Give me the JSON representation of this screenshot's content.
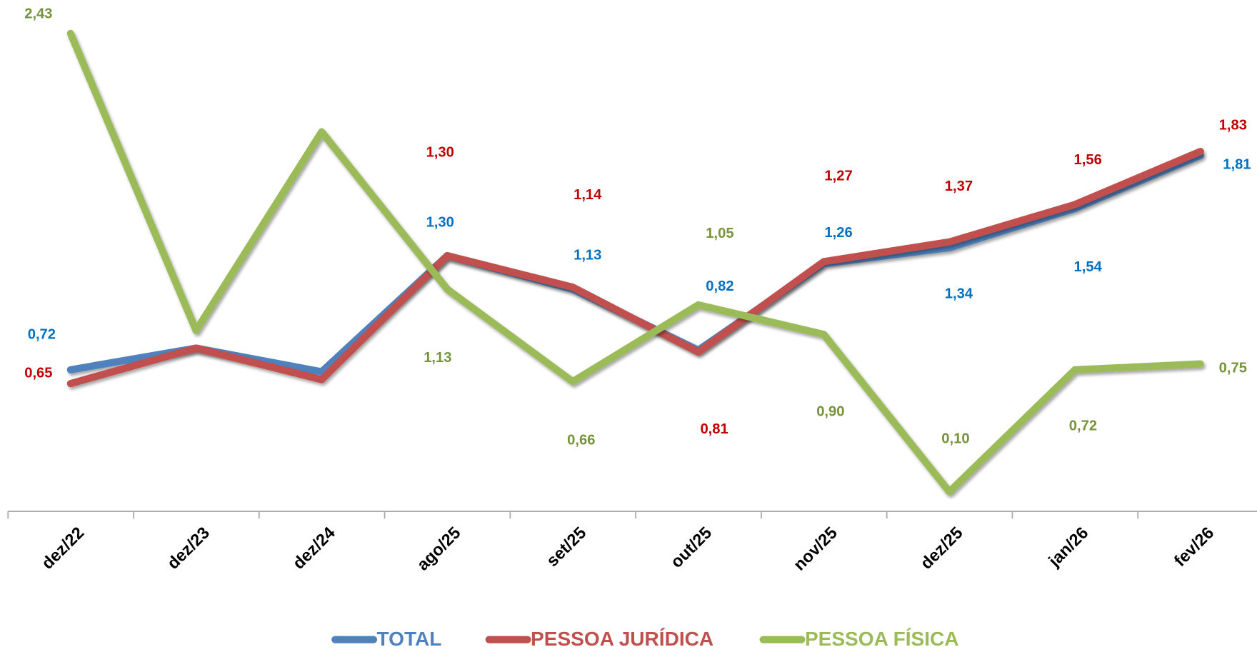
{
  "chart_data": {
    "type": "line",
    "categories": [
      "dez/22",
      "dez/23",
      "dez/24",
      "ago/25",
      "set/25",
      "out/25",
      "nov/25",
      "dez/25",
      "jan/26",
      "fev/26"
    ],
    "series": [
      {
        "name": "TOTAL",
        "color": "#4f81bd",
        "values": [
          0.72,
          0.83,
          0.71,
          1.3,
          1.13,
          0.82,
          1.26,
          1.34,
          1.54,
          1.81
        ],
        "value_labels": [
          "0,72",
          null,
          null,
          "1,30",
          "1,13",
          "0,82",
          "1,26",
          "1,34",
          "1,54",
          "1,81"
        ]
      },
      {
        "name": "PESSOA JURÍDICA",
        "color": "#c0504d",
        "values": [
          0.65,
          0.83,
          0.67,
          1.3,
          1.14,
          0.81,
          1.27,
          1.37,
          1.56,
          1.83
        ],
        "value_labels": [
          "0,65",
          null,
          null,
          "1,30",
          "1,14",
          "0,81",
          "1,27",
          "1,37",
          "1,56",
          "1,83"
        ]
      },
      {
        "name": "PESSOA FÍSICA",
        "color": "#9bbb59",
        "values": [
          2.43,
          0.92,
          1.93,
          1.13,
          0.66,
          1.05,
          0.9,
          0.1,
          0.72,
          0.75
        ],
        "value_labels": [
          "2,43",
          null,
          null,
          "1,13",
          "0,66",
          "1,05",
          "0,90",
          "0,10",
          "0,72",
          "0,75"
        ]
      }
    ],
    "ylim": [
      0,
      2.6
    ],
    "grid": false,
    "legend": "bottom"
  }
}
